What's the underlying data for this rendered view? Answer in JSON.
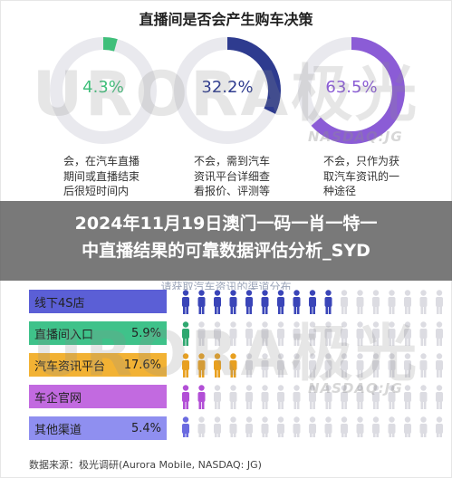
{
  "title": "直播间是否会产生购车决策",
  "donuts": [
    {
      "value": 4.3,
      "label": "4.3%",
      "color": "#3fbf7a",
      "caption": [
        "会，在汽车直播",
        "期间或直播结束",
        "后很短时间内"
      ]
    },
    {
      "value": 32.2,
      "label": "32.2%",
      "color": "#2e3b8f",
      "caption": [
        "不会，需到汽车",
        "资讯平台详细查",
        "看报价、评测等"
      ]
    },
    {
      "value": 63.5,
      "label": "63.5%",
      "color": "#8b5cd6",
      "caption": [
        "不会，只作为获",
        "取汽车资讯的一",
        "种途径"
      ]
    }
  ],
  "watermark": {
    "text": "URORA极光",
    "nasdaq": "NASDAQ:JG"
  },
  "overlay": {
    "line1": "2024年11月19日澳门一码一肖一特一",
    "line2": "中直播结果的可靠数据评估分析_SYD"
  },
  "subtitle_partial": "请获取汽车资讯的渠道分布",
  "chart_data": [
    {
      "type": "pie",
      "title": "直播间是否会产生购车决策",
      "labels": [
        "会，在汽车直播期间或直播结束后很短时间内",
        "不会，需到汽车资讯平台详细查看报价、评测等",
        "不会，只作为获取汽车资讯的一种途径"
      ],
      "values": [
        4.3,
        32.2,
        63.5
      ]
    },
    {
      "type": "bar",
      "categories": [
        "线下4S店",
        "直播间入口",
        "汽车资讯平台",
        "车企官网",
        "其他渠道"
      ],
      "values": [
        null,
        5.9,
        17.6,
        null,
        5.4
      ],
      "value_labels": [
        "",
        "5.9%",
        "17.6%",
        "",
        "5.4%"
      ]
    }
  ],
  "bars": [
    {
      "label": "线下4S店",
      "value_label": "",
      "color": "#5b5fd6",
      "people_filled": 10,
      "people_color": "#3a45b8"
    },
    {
      "label": "直播间入口",
      "value_label": "5.9%",
      "color": "#3fc28a",
      "people_filled": 1,
      "people_color": "#2fa870"
    },
    {
      "label": "汽车资讯平台",
      "value_label": "17.6%",
      "color": "#f2b234",
      "people_filled": 4,
      "people_color": "#e8a020"
    },
    {
      "label": "车企官网",
      "value_label": "",
      "color": "#c26ae0",
      "people_filled": 2,
      "people_color": "#b24fd6"
    },
    {
      "label": "其他渠道",
      "value_label": "5.4%",
      "color": "#8f8ff0",
      "people_filled": 1,
      "people_color": "#6b6be0"
    }
  ],
  "people_total": 17,
  "footer": "数据来源：极光调研(Aurora Mobile, NASDAQ: JG)"
}
